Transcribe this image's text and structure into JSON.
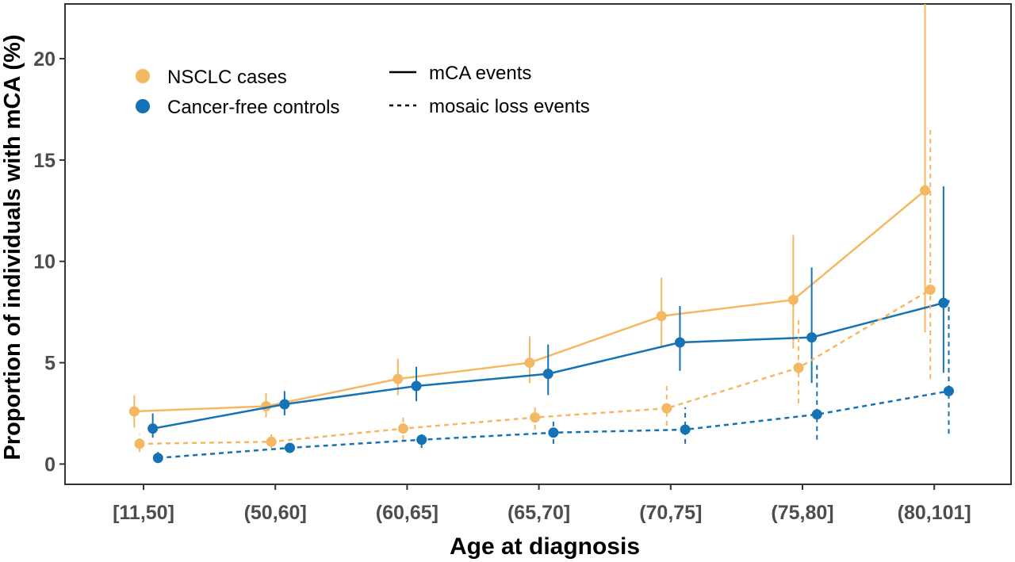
{
  "chart_data": {
    "type": "line",
    "xlabel": "Age at diagnosis",
    "ylabel": "Proportion of individuals with mCA (%)",
    "categories": [
      "[11,50]",
      "(50,60]",
      "(60,65]",
      "(65,70]",
      "(70,75]",
      "(75,80]",
      "(80,101]"
    ],
    "yticks": [
      0,
      5,
      10,
      15,
      20
    ],
    "ylim": [
      -1.0,
      22.7
    ],
    "grid": false,
    "legend_position": "top-left",
    "legend": {
      "groups": [
        {
          "label": "NSCLC cases",
          "color": "#F5B862"
        },
        {
          "label": "Cancer-free controls",
          "color": "#1472B5"
        }
      ],
      "linetypes": [
        {
          "label": "mCA events",
          "style": "solid"
        },
        {
          "label": "mosaic loss events",
          "style": "dashed"
        }
      ]
    },
    "series": [
      {
        "group": "NSCLC cases",
        "event": "mCA events",
        "color": "#F5B862",
        "style": "solid",
        "offset": -0.07,
        "values": [
          2.6,
          2.85,
          4.2,
          5.0,
          7.3,
          8.1,
          13.5
        ],
        "ci_low": [
          1.8,
          2.3,
          3.4,
          4.0,
          5.8,
          5.7,
          6.5
        ],
        "ci_high": [
          3.4,
          3.5,
          5.2,
          6.3,
          9.2,
          11.3,
          22.7
        ]
      },
      {
        "group": "Cancer-free controls",
        "event": "mCA events",
        "color": "#1472B5",
        "style": "solid",
        "offset": 0.07,
        "values": [
          1.75,
          2.95,
          3.85,
          4.45,
          6.0,
          6.25,
          7.95
        ],
        "ci_low": [
          1.3,
          2.4,
          3.1,
          3.4,
          4.6,
          4.0,
          4.5
        ],
        "ci_high": [
          2.5,
          3.6,
          4.8,
          5.9,
          7.8,
          9.7,
          13.7
        ]
      },
      {
        "group": "NSCLC cases",
        "event": "mosaic loss events",
        "color": "#F5B862",
        "style": "dashed",
        "offset": -0.03,
        "values": [
          1.0,
          1.1,
          1.75,
          2.3,
          2.75,
          4.75,
          8.6
        ],
        "ci_low": [
          0.6,
          0.8,
          1.2,
          1.7,
          1.9,
          3.0,
          4.2
        ],
        "ci_high": [
          1.5,
          1.5,
          2.4,
          3.0,
          4.0,
          7.2,
          16.5
        ]
      },
      {
        "group": "Cancer-free controls",
        "event": "mosaic loss events",
        "color": "#1472B5",
        "style": "dashed",
        "offset": 0.11,
        "values": [
          0.3,
          0.8,
          1.2,
          1.55,
          1.7,
          2.45,
          3.6
        ],
        "ci_low": [
          0.1,
          0.6,
          0.8,
          1.0,
          1.0,
          1.2,
          1.5
        ],
        "ci_high": [
          0.6,
          1.0,
          1.6,
          2.2,
          2.8,
          4.9,
          8.1
        ]
      }
    ]
  }
}
